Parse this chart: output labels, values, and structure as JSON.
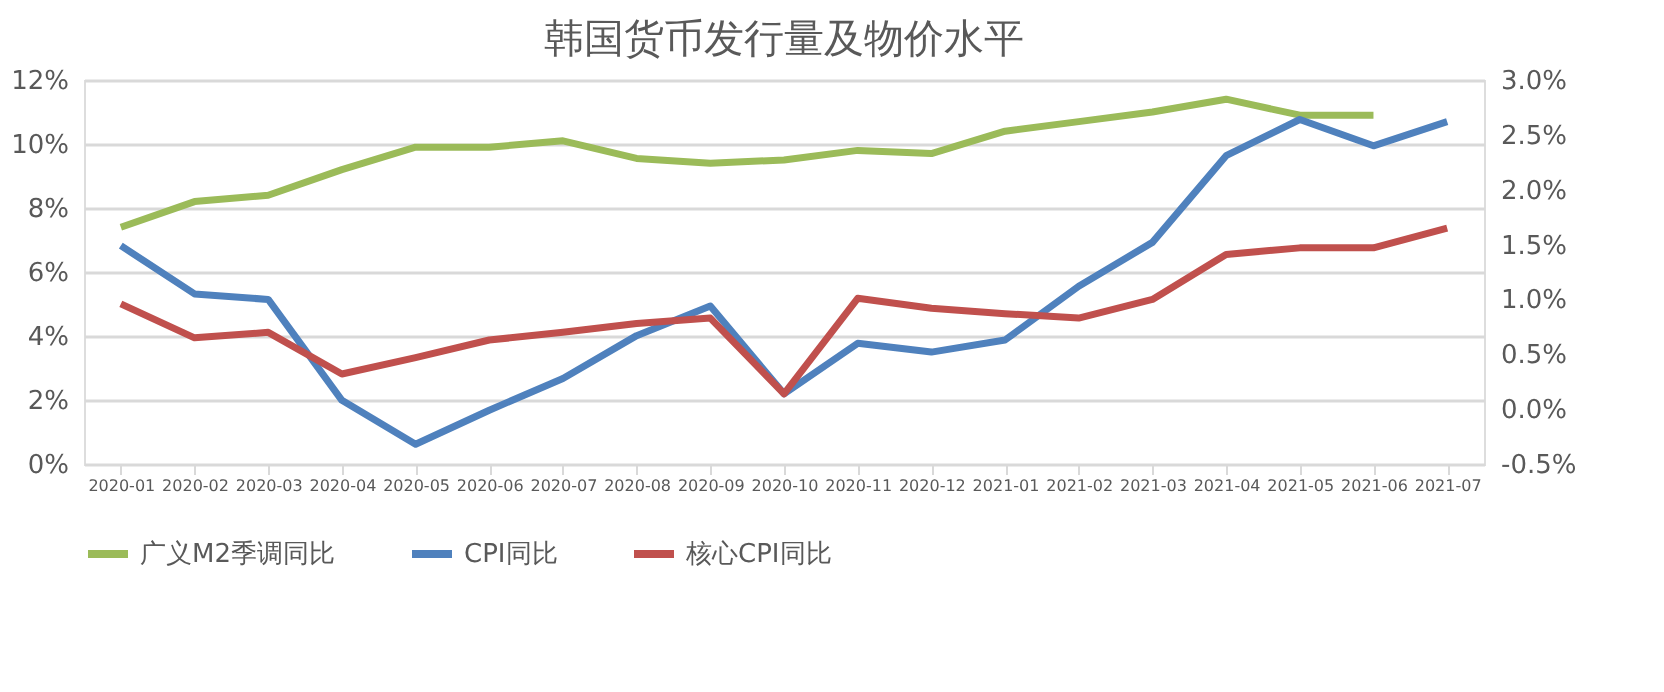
{
  "chart_data": {
    "type": "line",
    "title": "韩国货币发行量及物价水平",
    "categories": [
      "2020-01",
      "2020-02",
      "2020-03",
      "2020-04",
      "2020-05",
      "2020-06",
      "2020-07",
      "2020-08",
      "2020-09",
      "2020-10",
      "2020-11",
      "2020-12",
      "2021-01",
      "2021-02",
      "2021-03",
      "2021-04",
      "2021-05",
      "2021-06",
      "2021-07"
    ],
    "series": [
      {
        "name": "广义M2季调同比",
        "color": "#9bbb59",
        "values": [
          7.4,
          8.2,
          8.4,
          9.2,
          9.9,
          9.9,
          10.1,
          9.55,
          9.4,
          9.5,
          9.8,
          9.7,
          10.4,
          10.7,
          11.0,
          11.4,
          10.9,
          10.9,
          null
        ]
      },
      {
        "name": "CPI同比",
        "color": "#4f81bd",
        "axis": "y2",
        "values": [
          1.49,
          1.05,
          1.0,
          0.08,
          -0.32,
          -0.01,
          0.28,
          0.67,
          0.94,
          0.14,
          0.6,
          0.52,
          0.63,
          1.12,
          1.52,
          2.31,
          2.64,
          2.4,
          2.62
        ]
      },
      {
        "name": "核心CPI同比",
        "color": "#c0504d",
        "axis": "y2",
        "values": [
          0.96,
          0.65,
          0.7,
          0.32,
          0.47,
          0.63,
          0.7,
          0.78,
          0.83,
          0.14,
          1.01,
          0.92,
          0.87,
          0.83,
          1.0,
          1.41,
          1.47,
          1.47,
          1.65
        ]
      }
    ],
    "ylim": [
      0,
      12
    ],
    "yticks": [
      {
        "value": 0,
        "label": "0%"
      },
      {
        "value": 2,
        "label": "2%"
      },
      {
        "value": 4,
        "label": "4%"
      },
      {
        "value": 6,
        "label": "6%"
      },
      {
        "value": 8,
        "label": "8%"
      },
      {
        "value": 10,
        "label": "10%"
      },
      {
        "value": 12,
        "label": "12%"
      }
    ],
    "y2lim": [
      -0.5,
      3.0
    ],
    "y2ticks": [
      {
        "value": -0.5,
        "label": "-0.5%"
      },
      {
        "value": 0,
        "label": "0.0%"
      },
      {
        "value": 0.5,
        "label": "0.5%"
      },
      {
        "value": 1.0,
        "label": "1.0%"
      },
      {
        "value": 1.5,
        "label": "1.5%"
      },
      {
        "value": 2.0,
        "label": "2.0%"
      },
      {
        "value": 2.5,
        "label": "2.5%"
      },
      {
        "value": 3.0,
        "label": "3.0%"
      }
    ],
    "grid": "y",
    "legend": "bottom",
    "marker": "none",
    "line_style": "solid"
  }
}
